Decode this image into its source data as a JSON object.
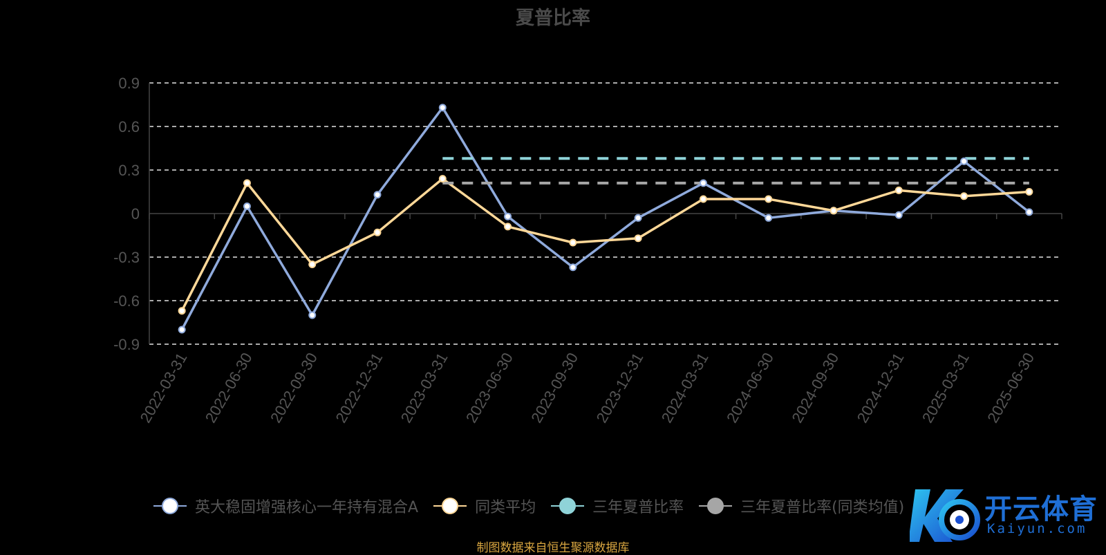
{
  "chart_data": {
    "type": "line",
    "title": "夏普比率",
    "categories": [
      "2022-03-31",
      "2022-06-30",
      "2022-09-30",
      "2022-12-31",
      "2023-03-31",
      "2023-06-30",
      "2023-09-30",
      "2023-12-31",
      "2024-03-31",
      "2024-06-30",
      "2024-09-30",
      "2024-12-31",
      "2025-03-31",
      "2025-06-30"
    ],
    "y_ticks": [
      "0.9",
      "0.6",
      "0.3",
      "0",
      "-0.3",
      "-0.6",
      "-0.9"
    ],
    "ylim": [
      -0.9,
      0.9
    ],
    "grid": true,
    "legend_position": "bottom",
    "series": [
      {
        "name": "英大稳固增强核心一年持有混合A",
        "color": "#8faadc",
        "style": "line-marker",
        "values": [
          -0.8,
          0.05,
          -0.7,
          0.13,
          0.73,
          -0.02,
          -0.37,
          -0.03,
          0.21,
          -0.03,
          0.02,
          -0.01,
          0.36,
          0.01
        ]
      },
      {
        "name": "同类平均",
        "color": "#ffd898",
        "style": "line-marker",
        "values": [
          -0.67,
          0.21,
          -0.35,
          -0.13,
          0.24,
          -0.09,
          -0.2,
          -0.17,
          0.1,
          0.1,
          0.02,
          0.16,
          0.12,
          0.15
        ]
      },
      {
        "name": "三年夏普比率",
        "color": "#8fd3d8",
        "style": "dashed",
        "from_category": "2023-03-31",
        "to_category": "2025-06-30",
        "value": 0.38
      },
      {
        "name": "三年夏普比率(同类均值)",
        "color": "#a6a6a6",
        "style": "dashed",
        "from_category": "2023-03-31",
        "to_category": "2025-06-30",
        "value": 0.21
      }
    ]
  },
  "legend": {
    "items": [
      {
        "label": "英大稳固增强核心一年持有混合A",
        "color": "#8faadc",
        "dot_fill": "#ffffff"
      },
      {
        "label": "同类平均",
        "color": "#ffd898",
        "dot_fill": "#ffffff"
      },
      {
        "label": "三年夏普比率",
        "color": "#8fd3d8",
        "dot_fill": "#8fd3d8"
      },
      {
        "label": "三年夏普比率(同类均值)",
        "color": "#a6a6a6",
        "dot_fill": "#a6a6a6"
      }
    ]
  },
  "source_note": "制图数据来自恒生聚源数据库",
  "watermark": {
    "text": "开云体育",
    "sub": "Kaiyun.com",
    "color": "#1f6fd6"
  }
}
